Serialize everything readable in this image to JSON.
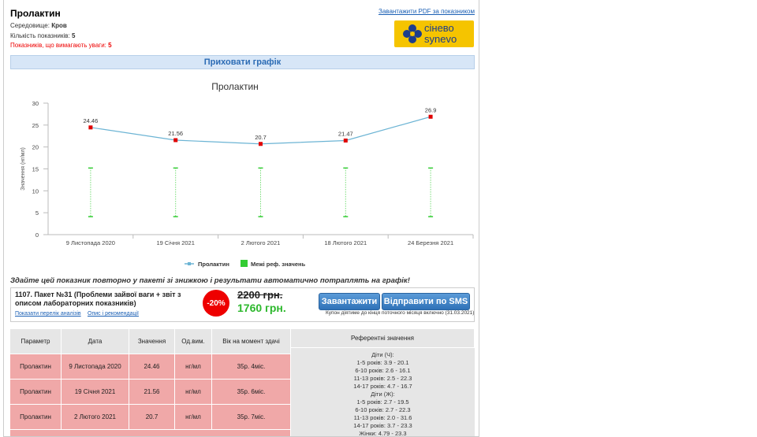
{
  "header": {
    "title": "Пролактин",
    "pdf_link": "Завантажити PDF за показником",
    "medium_label": "Середовище:",
    "medium": "Кров",
    "count_label": "Кількість показників:",
    "count": "5",
    "attention_label": "Показників, що вимагають уваги:",
    "attention": "5",
    "logo_top": "сінево",
    "logo_bottom": "synevo"
  },
  "toggle": "Приховати графік",
  "chart_data": {
    "type": "line",
    "title": "Пролактин",
    "y_label": "Значення (нг/мл)",
    "categories": [
      "9 Листопада 2020",
      "19 Січня 2021",
      "2 Лютого 2021",
      "18 Лютого 2021",
      "24 Березня 2021"
    ],
    "series": [
      {
        "name": "Пролактин",
        "color": "#6cb4d4",
        "marker_color": "#e00000",
        "values": [
          24.46,
          21.56,
          20.7,
          21.47,
          26.9
        ]
      }
    ],
    "reference": {
      "name": "Межі реф. значень",
      "color": "#33cc33",
      "low": [
        4.1,
        4.1,
        4.1,
        4.1,
        4.1
      ],
      "high": [
        15.2,
        15.2,
        15.2,
        15.2,
        15.2
      ]
    },
    "ylim": [
      0,
      30
    ],
    "yticks": [
      0,
      5,
      10,
      15,
      20,
      25,
      30
    ],
    "grid": false
  },
  "promo": {
    "headline": "Здайте цей показник повторно у пакеті зі знижкою і результати автоматично потраплять на графік!",
    "package": "1107. Пакет №31 (Проблеми зайвої ваги + звіт з описом лабораторних показників)",
    "link1": "Показати перелік аналізів",
    "link2": "Опис і рекомендації",
    "discount": "-20%",
    "old_price": "2200 грн.",
    "new_price": "1760 грн.",
    "btn1": "Завантажити",
    "btn2": "Відправити по SMS",
    "coupon": "Купон діятиме до кінця поточного місяця включно (31.03.2021)"
  },
  "table": {
    "headers": [
      "Параметр",
      "Дата",
      "Значення",
      "Од.вим.",
      "Вік на момент здачі",
      "Референтні значення"
    ],
    "rows": [
      [
        "Пролактин",
        "9 Листопада 2020",
        "24.46",
        "нг/мл",
        "35р. 4міс."
      ],
      [
        "Пролактин",
        "19 Січня 2021",
        "21.56",
        "нг/мл",
        "35р. 6міс."
      ],
      [
        "Пролактин",
        "2 Лютого 2021",
        "20.7",
        "нг/мл",
        "35р. 7міс."
      ]
    ],
    "reference": [
      "Діти (Ч):",
      "1-5 років: 3.9 - 20.1",
      "6-10 років: 2.6 - 16.1",
      "11-13 років: 2.5 - 22.3",
      "14-17 років: 4.7 - 16.7",
      "Діти (Ж):",
      "1-5 років: 2.7 - 19.5",
      "6-10 років: 2.7 - 22.3",
      "11-13 років: 2.0 - 31.6",
      "14-17 років: 3.7 - 23.3",
      "Жінки: 4.79 - 23.3"
    ]
  }
}
